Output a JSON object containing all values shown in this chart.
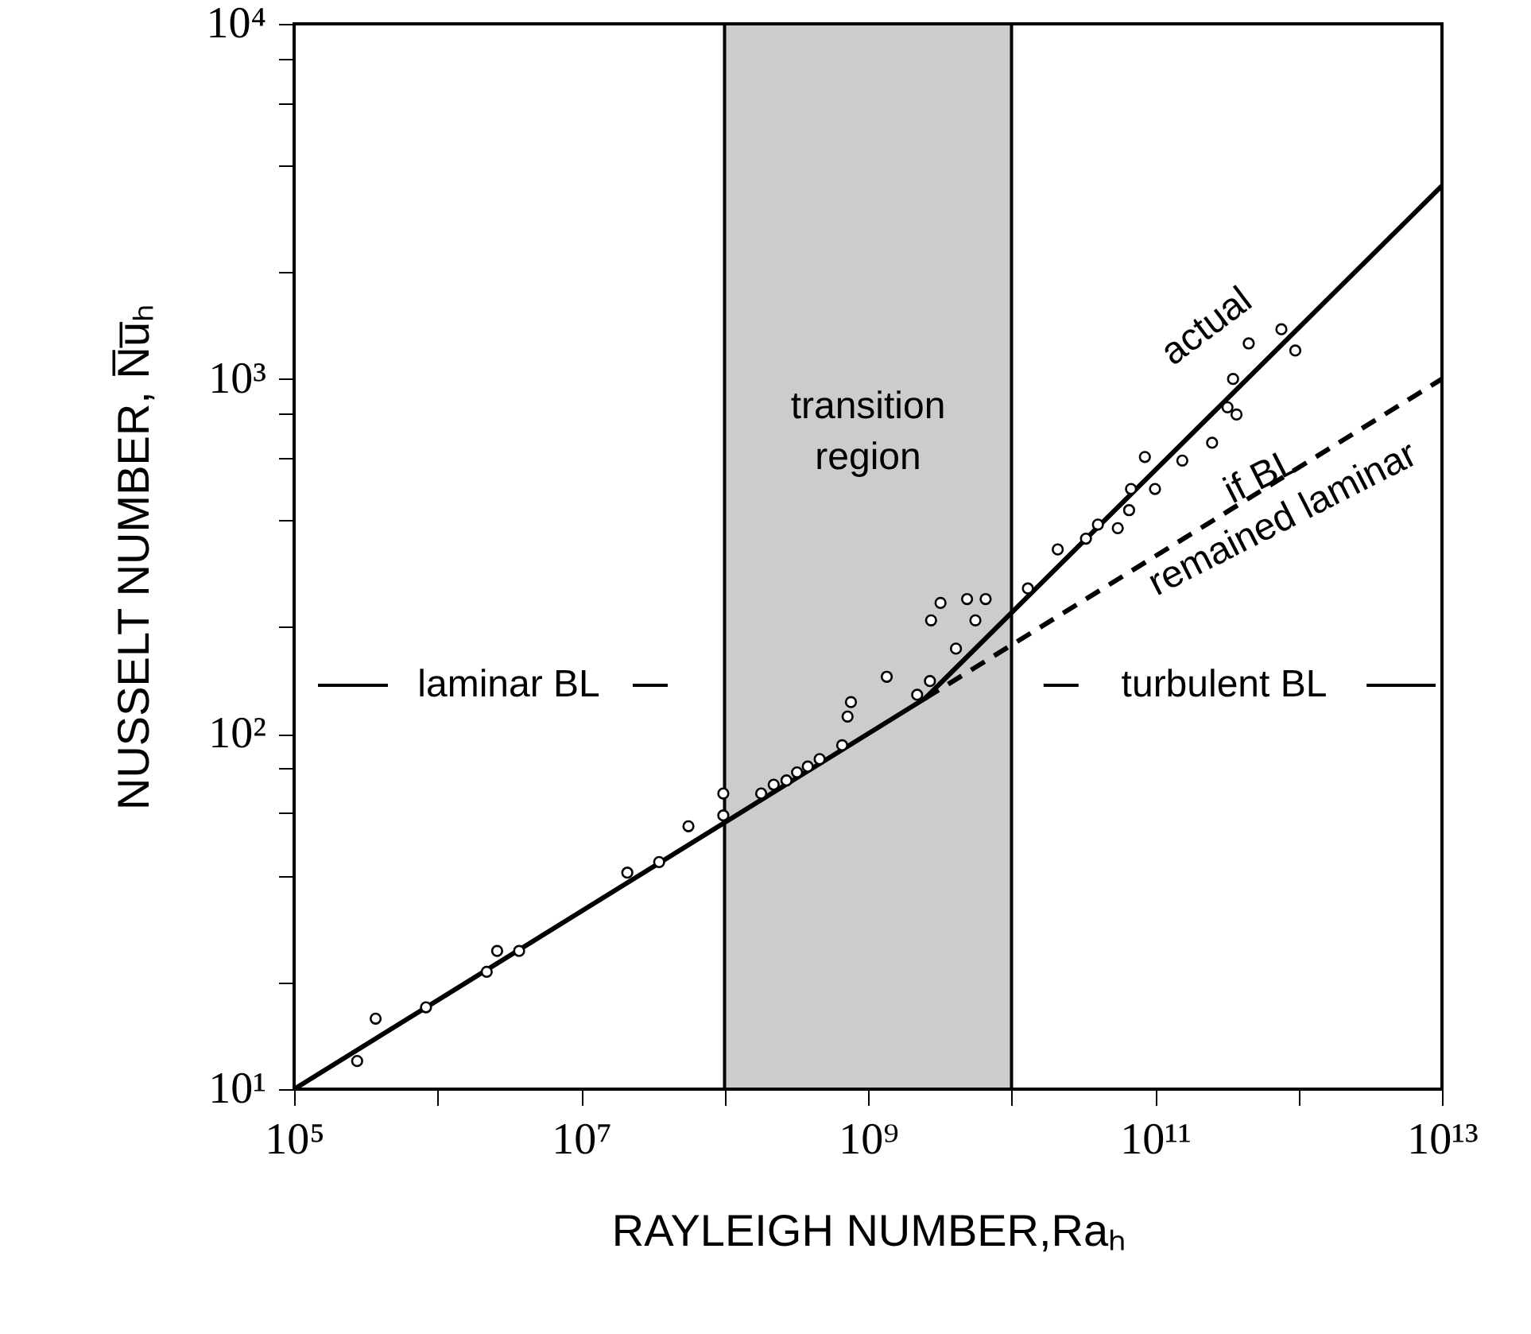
{
  "chart_data": {
    "type": "scatter",
    "xlabel": "RAYLEIGH NUMBER,Raₕ",
    "ylabel": "NUSSELT NUMBER, N̅u̅ₕ",
    "log": "xy",
    "xlim": [
      100000,
      10000000000000
    ],
    "ylim": [
      10,
      10000
    ],
    "xticks": [
      {
        "value": 100000,
        "label": "10⁵"
      },
      {
        "value": 1000000,
        "label": null
      },
      {
        "value": 10000000,
        "label": "10⁷"
      },
      {
        "value": 100000000,
        "label": null
      },
      {
        "value": 1000000000,
        "label": "10⁹"
      },
      {
        "value": 10000000000,
        "label": null
      },
      {
        "value": 100000000000,
        "label": "10¹¹"
      },
      {
        "value": 1000000000000,
        "label": null
      },
      {
        "value": 10000000000000,
        "label": "10¹³"
      }
    ],
    "yticks": [
      {
        "value": 10,
        "label": "10¹"
      },
      {
        "value": 20,
        "label": null
      },
      {
        "value": 40,
        "label": null
      },
      {
        "value": 60,
        "label": null
      },
      {
        "value": 80,
        "label": null
      },
      {
        "value": 100,
        "label": "10²"
      },
      {
        "value": 200,
        "label": null
      },
      {
        "value": 400,
        "label": null
      },
      {
        "value": 600,
        "label": null
      },
      {
        "value": 800,
        "label": null
      },
      {
        "value": 1000,
        "label": "10³"
      },
      {
        "value": 2000,
        "label": null
      },
      {
        "value": 4000,
        "label": null
      },
      {
        "value": 6000,
        "label": null
      },
      {
        "value": 8000,
        "label": null
      },
      {
        "value": 10000,
        "label": "10⁴"
      }
    ],
    "grid": false,
    "bands": [
      {
        "axis": "x",
        "from": 100000000,
        "to": 10000000000,
        "label": "transition region",
        "color": "#cccccc"
      }
    ],
    "annotations": [
      "laminar BL",
      "turbulent BL"
    ],
    "series": [
      {
        "name": "actual",
        "type": "line",
        "line_style": "solid",
        "color": "#000000",
        "x": [
          100000,
          2500000000,
          10000000000000
        ],
        "values": [
          10,
          126,
          3500
        ]
      },
      {
        "name": "if BL remained laminar",
        "type": "line",
        "line_style": "dashed",
        "color": "#000000",
        "x": [
          2500000000,
          10000000000000
        ],
        "values": [
          126,
          1000
        ]
      },
      {
        "marker": "circle",
        "color": "#000000",
        "x": [
          275000,
          370000,
          830000,
          2200000,
          2600000,
          3700000,
          21000000,
          35000000,
          56000000,
          98000000,
          98000000,
          180000000,
          220000000,
          270000000,
          320000000,
          380000000,
          460000000,
          660000000,
          720000000,
          760000000,
          1350000000,
          2200000000,
          2700000000,
          4100000000,
          2750000000,
          3200000000,
          4900000000,
          6600000000,
          5600000000,
          13000000000,
          21000000000,
          33000000000,
          40000000000,
          55000000000,
          66000000000,
          68000000000,
          100000000000,
          85000000000,
          155000000000,
          250000000000,
          320000000000,
          370000000000,
          350000000000,
          450000000000,
          760000000000,
          950000000000
        ],
        "values": [
          12.0,
          15.8,
          17.0,
          21.4,
          24.5,
          24.5,
          40.7,
          43.6,
          55,
          59,
          68,
          68,
          72,
          74,
          78,
          81,
          85,
          93,
          112,
          123,
          145,
          129,
          141,
          174,
          209,
          234,
          240,
          240,
          209,
          257,
          331,
          355,
          389,
          380,
          427,
          490,
          490,
          603,
          589,
          661,
          832,
          794,
          1000,
          1259,
          1380,
          1202
        ]
      }
    ]
  }
}
